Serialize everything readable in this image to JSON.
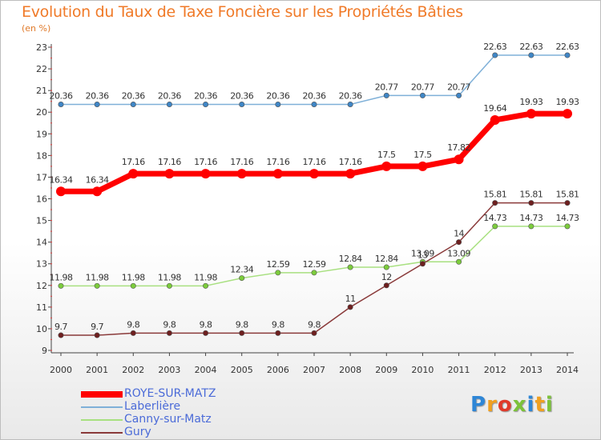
{
  "header": {
    "title": "Evolution du Taux de Taxe Foncière sur les Propriétés Bâties",
    "subtitle": "(en %)"
  },
  "chart_data": {
    "type": "line",
    "title": "Evolution du Taux de Taxe Foncière sur les Propriétés Bâties",
    "ylabel": "(en %)",
    "xlabel": "",
    "categories": [
      "2000",
      "2001",
      "2002",
      "2003",
      "2004",
      "2005",
      "2006",
      "2007",
      "2008",
      "2009",
      "2010",
      "2011",
      "2012",
      "2013",
      "2014"
    ],
    "ylim": [
      9,
      23
    ],
    "yticks": [
      9,
      10,
      11,
      12,
      13,
      14,
      15,
      16,
      17,
      18,
      19,
      20,
      21,
      22,
      23
    ],
    "grid": false,
    "series": [
      {
        "name": "ROYE-SUR-MATZ",
        "color": "#ff0000",
        "marker": "#ff0000",
        "width": 7,
        "values": [
          16.34,
          16.34,
          17.16,
          17.16,
          17.16,
          17.16,
          17.16,
          17.16,
          17.16,
          17.5,
          17.5,
          17.82,
          19.64,
          19.93,
          19.93
        ],
        "labels": [
          "16.34",
          "16.34",
          "17.16",
          "17.16",
          "17.16",
          "17.16",
          "17.16",
          "17.16",
          "17.16",
          "17.5",
          "17.5",
          "17.82",
          "19.64",
          "19.93",
          "19.93"
        ]
      },
      {
        "name": "Laberlière",
        "color": "#7fb0d8",
        "marker": "#3f86c6",
        "width": 1.5,
        "values": [
          20.36,
          20.36,
          20.36,
          20.36,
          20.36,
          20.36,
          20.36,
          20.36,
          20.36,
          20.77,
          20.77,
          20.77,
          22.63,
          22.63,
          22.63
        ],
        "labels": [
          "20.36",
          "20.36",
          "20.36",
          "20.36",
          "20.36",
          "20.36",
          "20.36",
          "20.36",
          "20.36",
          "20.77",
          "20.77",
          "20.77",
          "22.63",
          "22.63",
          "22.63"
        ]
      },
      {
        "name": "Canny-sur-Matz",
        "color": "#a8e080",
        "marker": "#7ccc3c",
        "width": 1.5,
        "values": [
          11.98,
          11.98,
          11.98,
          11.98,
          11.98,
          12.34,
          12.59,
          12.59,
          12.84,
          12.84,
          13.09,
          13.09,
          14.73,
          14.73,
          14.73
        ],
        "labels": [
          "11.98",
          "11.98",
          "11.98",
          "11.98",
          "11.98",
          "12.34",
          "12.59",
          "12.59",
          "12.84",
          "12.84",
          "13.09",
          "13.09",
          "14.73",
          "14.73",
          "14.73"
        ]
      },
      {
        "name": "Gury",
        "color": "#8a3a3a",
        "marker": "#6e1f1f",
        "width": 1.5,
        "values": [
          9.7,
          9.7,
          9.8,
          9.8,
          9.8,
          9.8,
          9.8,
          9.8,
          11,
          12,
          13,
          14,
          15.81,
          15.81,
          15.81
        ],
        "labels": [
          "9.7",
          "9.7",
          "9.8",
          "9.8",
          "9.8",
          "9.8",
          "9.8",
          "9.8",
          "11",
          "12",
          "13",
          "14",
          "15.81",
          "15.81",
          "15.81"
        ]
      }
    ]
  },
  "logo": {
    "text": "Proxiti",
    "letters": [
      "P",
      "r",
      "o",
      "x",
      "i",
      "t",
      "i"
    ],
    "colors": [
      "#2e86d6",
      "#f0a020",
      "#e03a2a",
      "#7cc23a",
      "#2e86d6",
      "#f0a020",
      "#7cc23a"
    ]
  }
}
